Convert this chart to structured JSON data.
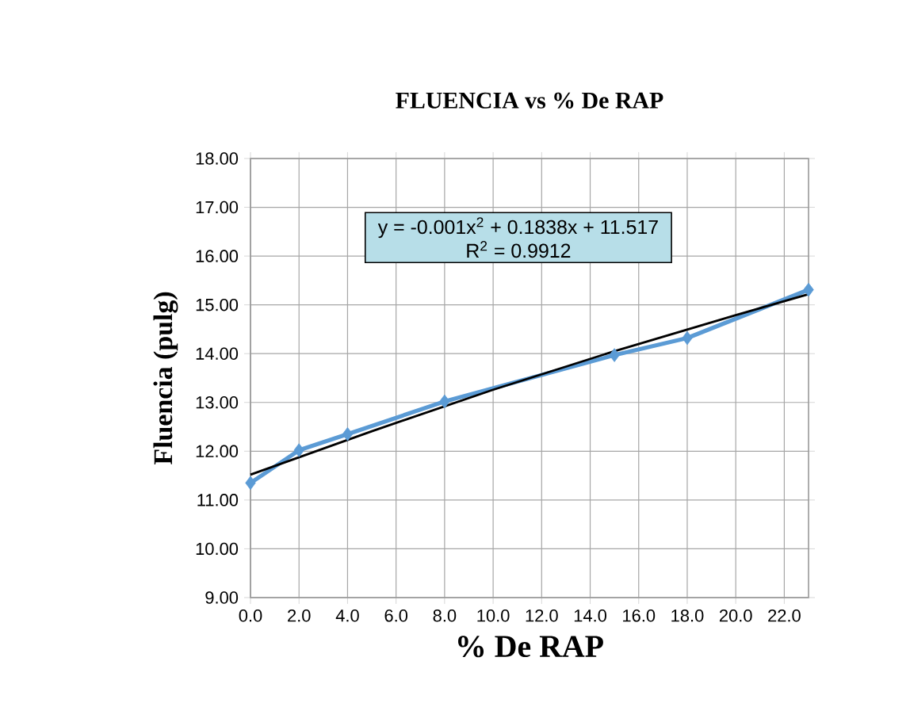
{
  "chart_data": {
    "type": "line",
    "title": "FLUENCIA vs % De RAP",
    "xlabel": "% De RAP",
    "ylabel": "Fluencia (pulg)",
    "xlim": [
      0,
      23
    ],
    "xticks": [
      {
        "value": 0,
        "label": "0.0"
      },
      {
        "value": 2,
        "label": "2.0"
      },
      {
        "value": 4,
        "label": "4.0"
      },
      {
        "value": 6,
        "label": "6.0"
      },
      {
        "value": 8,
        "label": "8.0"
      },
      {
        "value": 10,
        "label": "10.0"
      },
      {
        "value": 12,
        "label": "12.0"
      },
      {
        "value": 14,
        "label": "14.0"
      },
      {
        "value": 16,
        "label": "16.0"
      },
      {
        "value": 18,
        "label": "18.0"
      },
      {
        "value": 20,
        "label": "20.0"
      },
      {
        "value": 22,
        "label": "22.0"
      }
    ],
    "ylim": [
      9,
      18
    ],
    "yticks": [
      {
        "value": 9,
        "label": "9.00"
      },
      {
        "value": 10,
        "label": "10.00"
      },
      {
        "value": 11,
        "label": "11.00"
      },
      {
        "value": 12,
        "label": "12.00"
      },
      {
        "value": 13,
        "label": "13.00"
      },
      {
        "value": 14,
        "label": "14.00"
      },
      {
        "value": 15,
        "label": "15.00"
      },
      {
        "value": 16,
        "label": "16.00"
      },
      {
        "value": 17,
        "label": "17.00"
      },
      {
        "value": 18,
        "label": "18.00"
      }
    ],
    "grid": true,
    "marker": "diamond",
    "line_style": "solid",
    "series": [
      {
        "color": "#5b9bd5",
        "x": [
          0,
          2,
          4,
          8,
          15,
          18,
          23
        ],
        "values": [
          11.35,
          12.02,
          12.35,
          13.02,
          13.97,
          14.32,
          15.31
        ]
      },
      {
        "type": "line",
        "marker": "none",
        "color": "#000000",
        "x": [
          0,
          5,
          10,
          15,
          20,
          23
        ],
        "values": [
          11.52,
          12.41,
          13.26,
          14.05,
          14.79,
          15.22
        ]
      }
    ],
    "annotations": [
      "y = -0.001x$^{2}$ + 0.1838x + 11.517",
      "R$^{2}$ = 0.9912"
    ]
  }
}
